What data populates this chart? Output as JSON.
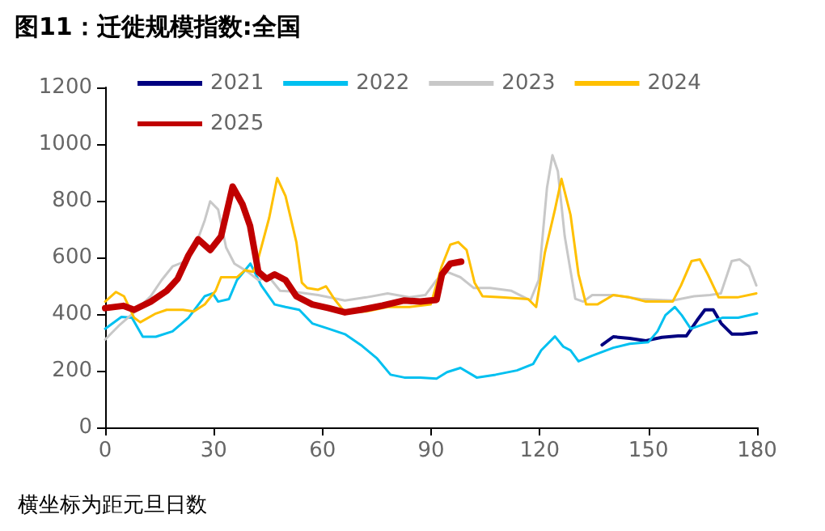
{
  "chart_data": {
    "type": "line",
    "title": "图11：迁徙规模指数:全国",
    "annotations": [
      "横坐标为距元旦日数"
    ],
    "xlim": [
      0,
      180
    ],
    "xticks": [
      0,
      30,
      60,
      90,
      120,
      150,
      180
    ],
    "ylim": [
      0,
      1200
    ],
    "yticks": [
      0,
      200,
      400,
      600,
      800,
      1000,
      1200
    ],
    "grid": false,
    "legend": "top",
    "marker": "none",
    "line_style": "solid",
    "series": [
      {
        "name": "2021",
        "color": "#000080",
        "x": [
          137.2,
          140.3,
          144.8,
          149.3,
          153.7,
          158.2,
          160.5,
          163.4,
          165.6,
          167.9,
          170.1,
          173.1,
          176,
          179.8
        ],
        "values": [
          291,
          320,
          314,
          306,
          318,
          323,
          323,
          377,
          415,
          415,
          367,
          329,
          329,
          335
        ]
      },
      {
        "name": "2022",
        "color": "#00c0f0",
        "x": [
          0,
          4.5,
          7.4,
          10.4,
          14,
          18.6,
          23,
          27.5,
          29.7,
          31.2,
          34.2,
          36.4,
          40.1,
          43.1,
          46.8,
          49.8,
          53.6,
          57.2,
          61.7,
          66.2,
          70.6,
          75.1,
          78.8,
          82.6,
          87,
          91.5,
          94.4,
          98.1,
          102.6,
          107.8,
          113.7,
          118.2,
          120.4,
          124.2,
          126.5,
          128.5,
          130.7,
          134.5,
          140.3,
          144.8,
          150,
          152.5,
          154.7,
          157.3,
          159.2,
          161.7,
          165.9,
          170.4,
          174.8,
          180
        ],
        "values": [
          348,
          390,
          387,
          320,
          320,
          339,
          387,
          463,
          473,
          444,
          453,
          520,
          578,
          501,
          434,
          425,
          415,
          367,
          348,
          329,
          291,
          243,
          186,
          176,
          176,
          172,
          195,
          210,
          176,
          186,
          201,
          224,
          272,
          321,
          285,
          272,
          233,
          253,
          281,
          295,
          301,
          339,
          396,
          425,
          396,
          348,
          367,
          387,
          387,
          402
        ]
      },
      {
        "name": "2023",
        "color": "#c8c8c8",
        "x": [
          0,
          3.7,
          8,
          12.6,
          15.6,
          18.6,
          22.3,
          25.3,
          27.5,
          29,
          31.2,
          33.4,
          35.7,
          39.4,
          42.3,
          45.3,
          48.3,
          51.3,
          58.8,
          66.2,
          72.1,
          78,
          84,
          88.4,
          91.5,
          94.4,
          98.1,
          101.8,
          106.3,
          112.2,
          117.4,
          119.7,
          122,
          123.5,
          125,
          126.9,
          129.8,
          132,
          134.5,
          140.3,
          147.8,
          156.7,
          162.6,
          167,
          170,
          173,
          175.2,
          177.8,
          179.8
        ],
        "values": [
          310,
          358,
          406,
          463,
          520,
          568,
          587,
          654,
          731,
          798,
          769,
          635,
          578,
          549,
          520,
          530,
          482,
          480,
          467,
          448,
          459,
          473,
          459,
          467,
          520,
          549,
          530,
          492,
          492,
          482,
          448,
          520,
          846,
          961,
          904,
          674,
          454,
          444,
          467,
          467,
          453,
          448,
          463,
          467,
          473,
          587,
          593,
          568,
          501
        ]
      },
      {
        "name": "2024",
        "color": "#ffc000",
        "x": [
          0,
          3,
          5.2,
          8,
          9.7,
          14,
          17,
          21.5,
          24.5,
          27.5,
          30.5,
          32,
          36.4,
          38.6,
          40.9,
          42.3,
          45.3,
          47.5,
          49.8,
          52.8,
          54.3,
          55.8,
          58.8,
          61,
          63.3,
          66.2,
          72.1,
          78,
          84,
          89.9,
          92.9,
          95.3,
          97.5,
          99.8,
          102,
          104.2,
          109.4,
          116.8,
          119,
          121.4,
          124.2,
          126,
          128.5,
          130.7,
          132.8,
          135.9,
          140.3,
          144.8,
          149.3,
          156.7,
          159,
          161.9,
          164.2,
          166.4,
          169.4,
          174.6,
          179.8
        ],
        "values": [
          444,
          478,
          463,
          387,
          371,
          402,
          415,
          415,
          409,
          434,
          482,
          530,
          530,
          555,
          549,
          597,
          740,
          880,
          817,
          654,
          511,
          492,
          486,
          498,
          453,
          406,
          409,
          425,
          425,
          434,
          568,
          645,
          654,
          626,
          511,
          463,
          459,
          453,
          425,
          616,
          769,
          877,
          750,
          540,
          434,
          434,
          467,
          459,
          444,
          444,
          501,
          587,
          593,
          540,
          459,
          459,
          473
        ]
      },
      {
        "name": "2025",
        "color": "#c00000",
        "x": [
          0,
          5,
          8,
          12.6,
          17,
          20,
          23,
          25.7,
          29,
          32,
          35.2,
          37.9,
          40,
          42.3,
          44.6,
          46.8,
          49.8,
          52.8,
          57.2,
          61.7,
          66.2,
          70.6,
          76.6,
          82.6,
          87,
          91.5,
          93,
          95.3,
          98.3
        ],
        "values": [
          421,
          429,
          415,
          444,
          482,
          524,
          607,
          664,
          626,
          674,
          850,
          788,
          712,
          549,
          524,
          540,
          520,
          463,
          434,
          421,
          406,
          415,
          430,
          448,
          444,
          450,
          540,
          578,
          585
        ]
      }
    ]
  }
}
